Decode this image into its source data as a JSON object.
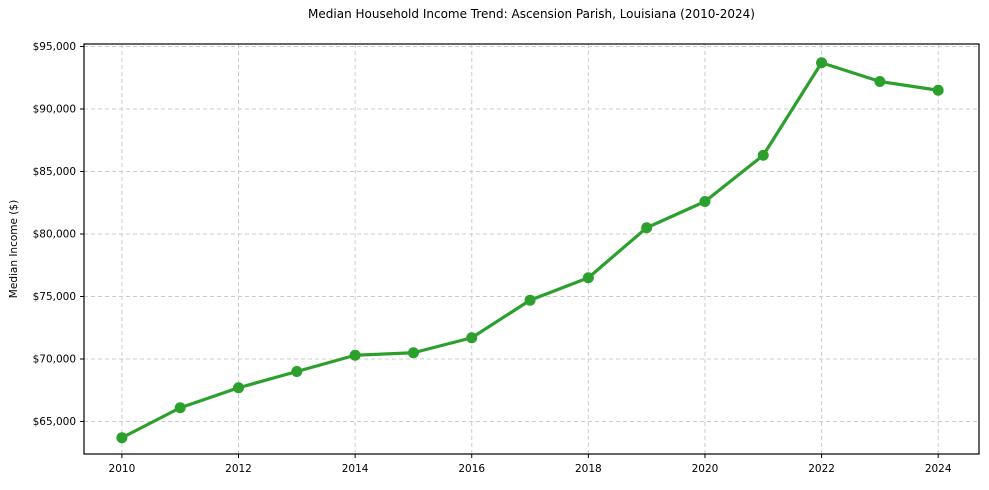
{
  "chart_data": {
    "type": "line",
    "title": "Median Household Income Trend: Ascension Parish, Louisiana (2010-2024)",
    "xlabel": "",
    "ylabel": "Median Income ($)",
    "x": [
      2010,
      2011,
      2012,
      2013,
      2014,
      2015,
      2016,
      2017,
      2018,
      2019,
      2020,
      2021,
      2022,
      2023,
      2024
    ],
    "values": [
      63700,
      66100,
      67700,
      69000,
      70300,
      70500,
      71700,
      74700,
      76500,
      80500,
      82600,
      86300,
      93700,
      92200,
      91500
    ],
    "series_name": "Median Household Income",
    "x_tick_values": [
      2010,
      2012,
      2014,
      2016,
      2018,
      2020,
      2022,
      2024
    ],
    "x_tick_labels": [
      "2010",
      "2012",
      "2014",
      "2016",
      "2018",
      "2020",
      "2022",
      "2024"
    ],
    "y_tick_values": [
      65000,
      70000,
      75000,
      80000,
      85000,
      90000,
      95000
    ],
    "y_tick_labels": [
      "$65,000",
      "$70,000",
      "$75,000",
      "$80,000",
      "$85,000",
      "$90,000",
      "$95,000"
    ],
    "xlim": [
      2009.35,
      2024.7
    ],
    "ylim": [
      62400,
      95200
    ],
    "grid": true,
    "legend": "none",
    "line_color": "#2ca02c",
    "marker_color": "#2ca02c",
    "grid_color": "#cccccc",
    "axis_color": "#000000",
    "background_color": "#ffffff"
  }
}
